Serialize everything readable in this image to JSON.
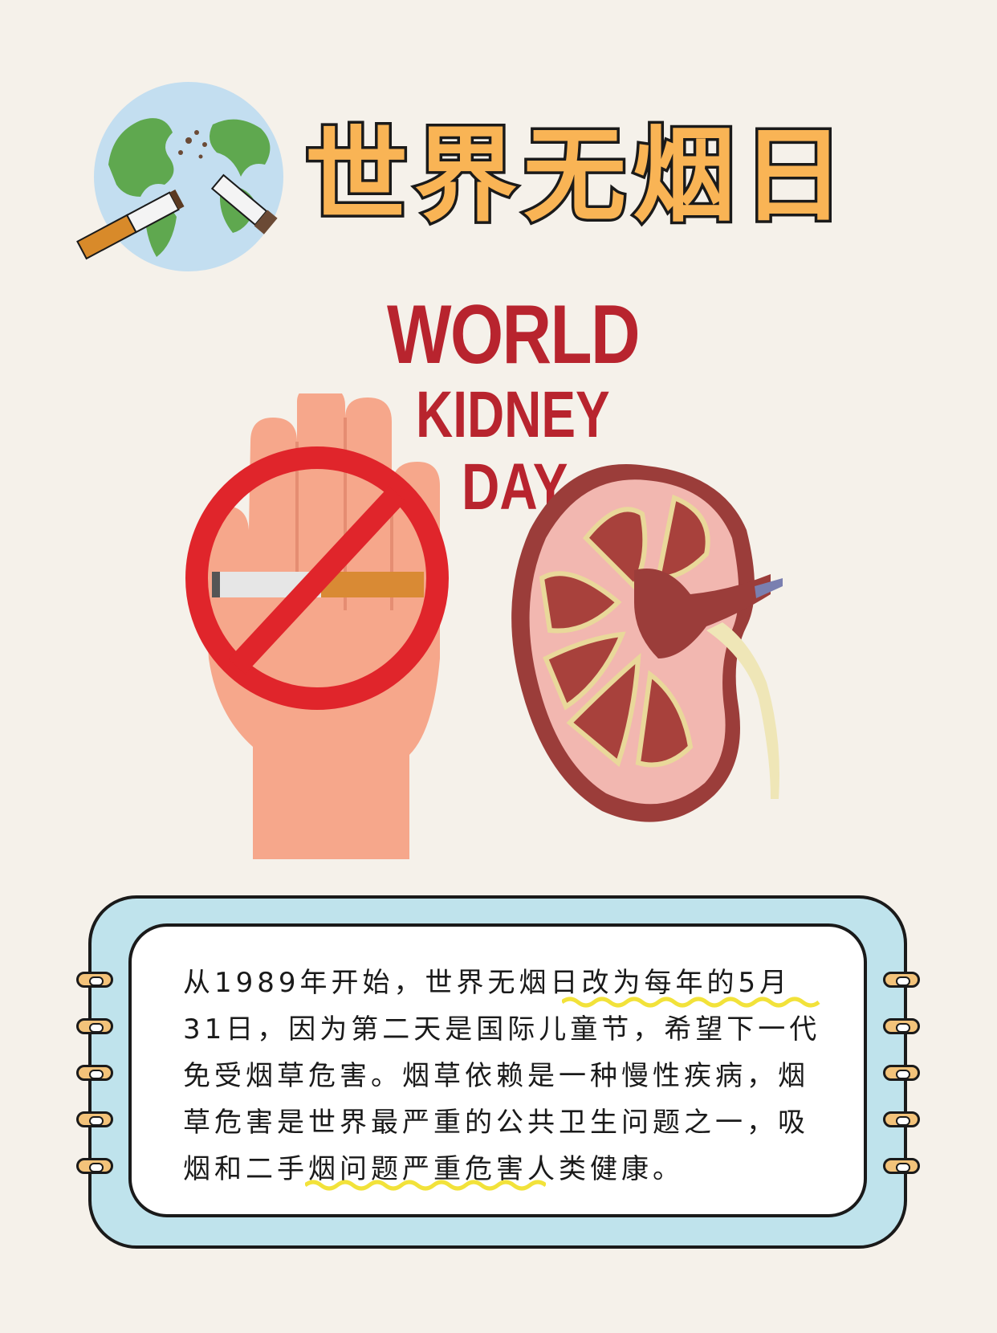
{
  "header": {
    "title": "世界无烟日",
    "globe_icon": "globe-broken-cigarette-icon"
  },
  "campaign": {
    "line1": "WORLD",
    "line2": "KIDNEY",
    "line3": "DAY"
  },
  "illustration": {
    "hand_icon": "no-smoking-hand-icon",
    "kidney_icon": "kidney-cross-section-icon"
  },
  "info_card": {
    "paragraph": "从1989年开始，世界无烟日改为每年的5月31日，因为第二天是国际儿童节，希望下一代免受烟草危害。烟草依赖是一种慢性疾病，烟草危害是世界最严重的公共卫生问题之一，吸烟和二手烟问题严重危害人类健康。"
  },
  "colors": {
    "background": "#f5f1ea",
    "title_fill": "#f9b455",
    "campaign_red": "#b8242e",
    "card_outer": "#bfe3ec",
    "highlight_yellow": "#f2e23a"
  }
}
